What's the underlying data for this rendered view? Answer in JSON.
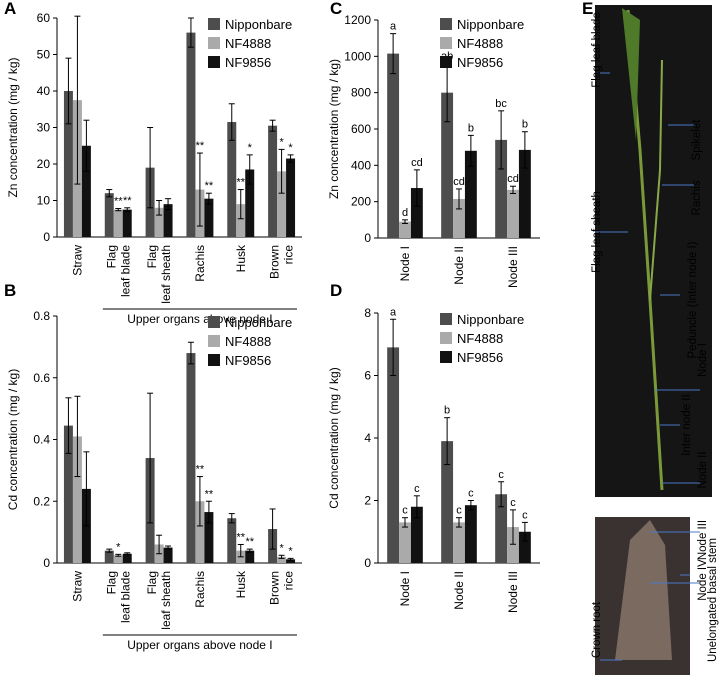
{
  "chart_data": [
    {
      "type": "bar",
      "panel_label": "A",
      "ylabel": "Zn concentration (mg / kg)",
      "categories": [
        "Straw",
        "Flag leaf blade",
        "Flag leaf sheath",
        "Rachis",
        "Husk",
        "Brown rice"
      ],
      "group_label": "Upper organs above node I",
      "ylim": [
        0,
        60
      ],
      "yticks": [
        0,
        10,
        20,
        30,
        40,
        50,
        60
      ],
      "series": [
        {
          "name": "Nipponbare",
          "color": "#4d4d4d",
          "values": [
            40,
            12,
            19,
            56,
            31.5,
            30.5
          ],
          "errors": [
            9,
            1,
            11,
            4,
            5,
            1.5
          ],
          "marks": [
            null,
            null,
            null,
            null,
            null,
            null
          ]
        },
        {
          "name": "NF4888",
          "color": "#aaaaaa",
          "values": [
            37.5,
            7.5,
            8,
            13,
            9,
            18
          ],
          "errors": [
            23,
            0.3,
            2,
            10,
            4,
            6
          ],
          "marks": [
            null,
            "**",
            null,
            "**",
            "**",
            "*"
          ]
        },
        {
          "name": "NF9856",
          "color": "#111111",
          "values": [
            25,
            7.5,
            9,
            10.5,
            18.5,
            21.5
          ],
          "errors": [
            7,
            0.5,
            1.5,
            1.5,
            4,
            1
          ],
          "marks": [
            null,
            "**",
            null,
            "**",
            "*",
            "*"
          ]
        }
      ]
    },
    {
      "type": "bar",
      "panel_label": "B",
      "ylabel": "Cd concentration (mg / kg)",
      "categories": [
        "Straw",
        "Flag leaf blade",
        "Flag leaf sheath",
        "Rachis",
        "Husk",
        "Brown rice"
      ],
      "group_label": "Upper organs above node I",
      "ylim": [
        0,
        0.8
      ],
      "yticks": [
        0,
        0.2,
        0.4,
        0.6,
        0.8
      ],
      "series": [
        {
          "name": "Nipponbare",
          "color": "#4d4d4d",
          "values": [
            0.445,
            0.04,
            0.34,
            0.68,
            0.145,
            0.11
          ],
          "errors": [
            0.09,
            0.005,
            0.21,
            0.035,
            0.015,
            0.065
          ],
          "marks": [
            null,
            null,
            null,
            null,
            null,
            null
          ]
        },
        {
          "name": "NF4888",
          "color": "#aaaaaa",
          "values": [
            0.41,
            0.025,
            0.06,
            0.2,
            0.04,
            0.02
          ],
          "errors": [
            0.13,
            0.003,
            0.03,
            0.08,
            0.02,
            0.005
          ],
          "marks": [
            null,
            "*",
            null,
            "**",
            "**",
            "*"
          ]
        },
        {
          "name": "NF9856",
          "color": "#111111",
          "values": [
            0.24,
            0.03,
            0.05,
            0.165,
            0.04,
            0.012
          ],
          "errors": [
            0.12,
            0.003,
            0.005,
            0.035,
            0.005,
            0.003
          ],
          "marks": [
            null,
            null,
            null,
            "**",
            "**",
            "*"
          ]
        }
      ]
    },
    {
      "type": "bar",
      "panel_label": "C",
      "ylabel": "Zn concentration (mg / kg)",
      "categories": [
        "Node I",
        "Node II",
        "Node III"
      ],
      "ylim": [
        0,
        1200
      ],
      "yticks": [
        0,
        200,
        400,
        600,
        800,
        1000,
        1200
      ],
      "series": [
        {
          "name": "Nipponbare",
          "color": "#4d4d4d",
          "values": [
            1015,
            800,
            540
          ],
          "errors": [
            110,
            160,
            160
          ],
          "marks": [
            "a",
            "ab",
            "bc"
          ]
        },
        {
          "name": "NF4888",
          "color": "#aaaaaa",
          "values": [
            90,
            215,
            265
          ],
          "errors": [
            10,
            55,
            20
          ],
          "marks": [
            "d",
            "cd",
            "cd"
          ]
        },
        {
          "name": "NF9856",
          "color": "#111111",
          "values": [
            275,
            480,
            485
          ],
          "errors": [
            100,
            85,
            100
          ],
          "marks": [
            "cd",
            "b",
            "b"
          ]
        }
      ]
    },
    {
      "type": "bar",
      "panel_label": "D",
      "ylabel": "Cd concentration (mg / kg)",
      "categories": [
        "Node I",
        "Node II",
        "Node III"
      ],
      "ylim": [
        0,
        8
      ],
      "yticks": [
        0,
        2,
        4,
        6,
        8
      ],
      "series": [
        {
          "name": "Nipponbare",
          "color": "#4d4d4d",
          "values": [
            6.9,
            3.9,
            2.2
          ],
          "errors": [
            0.9,
            0.75,
            0.4
          ],
          "marks": [
            "a",
            "b",
            "c"
          ]
        },
        {
          "name": "NF4888",
          "color": "#aaaaaa",
          "values": [
            1.3,
            1.3,
            1.15
          ],
          "errors": [
            0.15,
            0.15,
            0.55
          ],
          "marks": [
            "c",
            "c",
            "c"
          ]
        },
        {
          "name": "NF9856",
          "color": "#111111",
          "values": [
            1.8,
            1.85,
            1.0
          ],
          "errors": [
            0.35,
            0.15,
            0.3
          ],
          "marks": [
            "c",
            "c",
            "c"
          ]
        }
      ]
    }
  ],
  "photo": {
    "panel_label": "E",
    "labels": [
      "Flag leaf blade",
      "Spikelet",
      "Rachis",
      "Flag leaf sheath",
      "Peduncle (Inter node I)",
      "Node I",
      "Inter node II",
      "Node II",
      "Node III",
      "Node IV",
      "Crown root",
      "Unelongated basal stem"
    ]
  }
}
